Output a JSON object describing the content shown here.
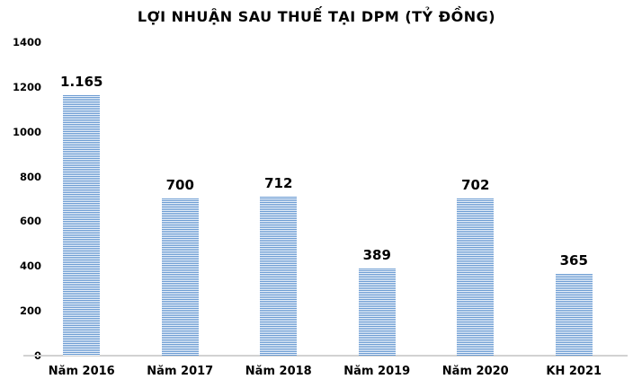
{
  "chart_data": {
    "type": "bar",
    "title": "LỢI NHUẬN SAU THUẾ TẠI DPM (TỶ ĐỒNG)",
    "categories": [
      "Năm 2016",
      "Năm 2017",
      "Năm 2018",
      "Năm 2019",
      "Năm 2020",
      "KH 2021"
    ],
    "values": [
      1165,
      700,
      712,
      389,
      702,
      365
    ],
    "value_labels": [
      "1.165",
      "700",
      "712",
      "389",
      "702",
      "365"
    ],
    "xlabel": "",
    "ylabel": "",
    "ylim": [
      0,
      1400
    ],
    "yticks": [
      0,
      200,
      400,
      600,
      800,
      1000,
      1200,
      1400
    ],
    "grid": false,
    "legend_position": "none",
    "colors": {
      "bar_stripe": "#6b9bd2",
      "bar_stripe_light": "#e9f1fa",
      "axis_line": "#d2d2d2",
      "text": "#000000"
    }
  }
}
